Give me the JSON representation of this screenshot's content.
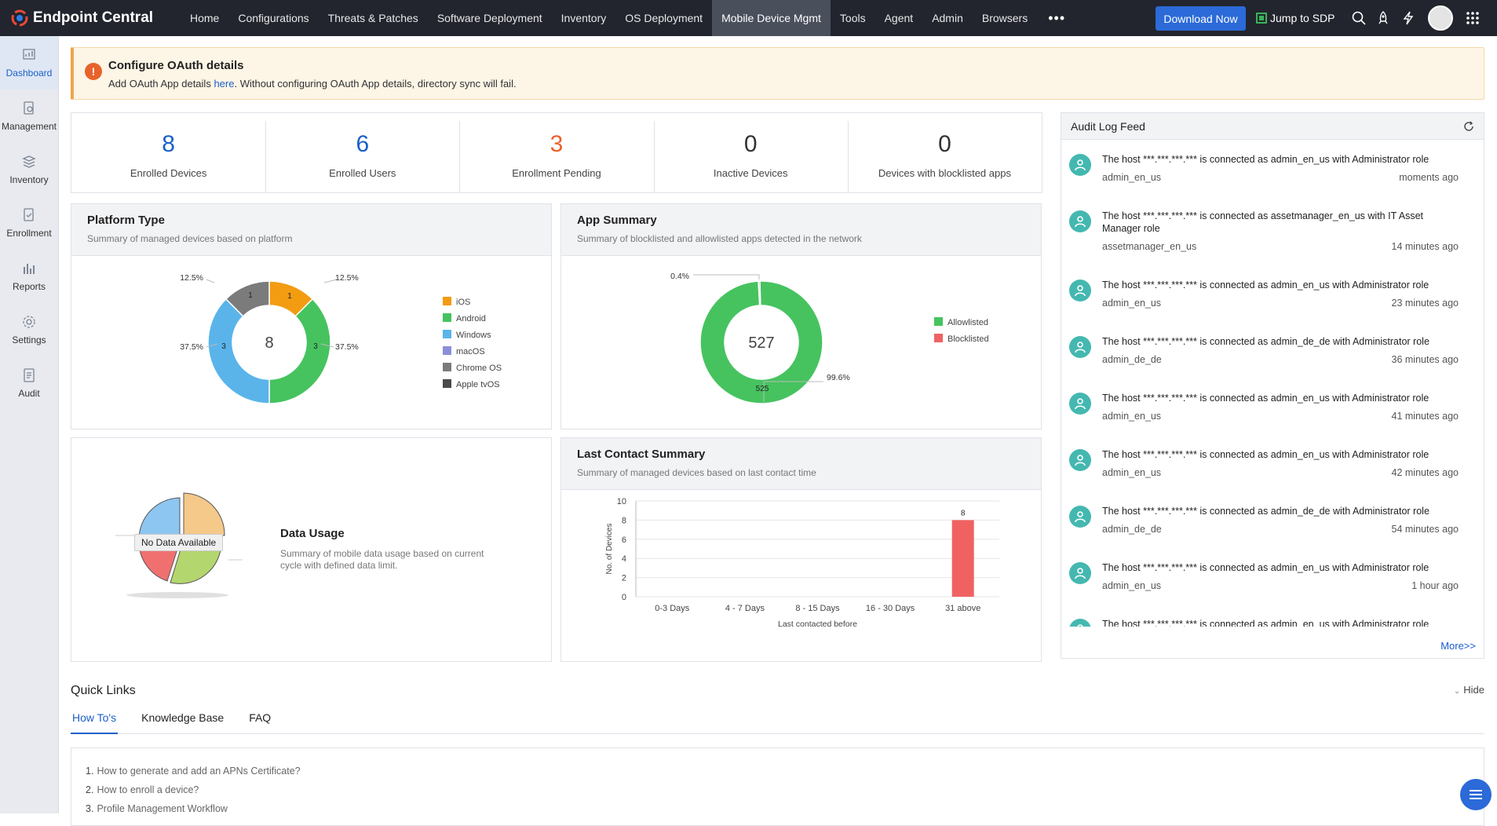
{
  "topbar": {
    "app_name": "Endpoint Central",
    "nav": [
      "Home",
      "Configurations",
      "Threats & Patches",
      "Software Deployment",
      "Inventory",
      "OS Deployment",
      "Mobile Device Mgmt",
      "Tools",
      "Agent",
      "Admin",
      "Browsers"
    ],
    "active_nav": "Mobile Device Mgmt",
    "more_label": "•••",
    "download_label": "Download Now",
    "jump_label": "Jump to SDP"
  },
  "sidebar": {
    "items": [
      {
        "label": "Dashboard",
        "icon": "dashboard-icon"
      },
      {
        "label": "Management",
        "icon": "management-icon"
      },
      {
        "label": "Inventory",
        "icon": "inventory-icon"
      },
      {
        "label": "Enrollment",
        "icon": "enrollment-icon"
      },
      {
        "label": "Reports",
        "icon": "reports-icon"
      },
      {
        "label": "Settings",
        "icon": "settings-icon"
      },
      {
        "label": "Audit",
        "icon": "audit-icon"
      }
    ],
    "active": "Dashboard"
  },
  "banner": {
    "title": "Configure OAuth details",
    "text_before": "Add OAuth App details ",
    "link": "here",
    "text_after": ". Without configuring OAuth App details, directory sync will fail."
  },
  "stats": [
    {
      "value": "8",
      "label": "Enrolled Devices",
      "color": "#1a5fc9"
    },
    {
      "value": "6",
      "label": "Enrolled Users",
      "color": "#1a5fc9"
    },
    {
      "value": "3",
      "label": "Enrollment Pending",
      "color": "#e8632c"
    },
    {
      "value": "0",
      "label": "Inactive Devices",
      "color": "#333333"
    },
    {
      "value": "0",
      "label": "Devices with blocklisted apps",
      "color": "#333333"
    }
  ],
  "platform": {
    "title": "Platform Type",
    "subtitle": "Summary of managed devices based on platform",
    "center": "8"
  },
  "appsum": {
    "title": "App Summary",
    "subtitle": "Summary of blocklisted and allowlisted apps detected in the network",
    "center": "527"
  },
  "datausage": {
    "title": "Data Usage",
    "subtitle": "Summary of mobile data usage based on current cycle with defined data limit.",
    "empty_label": "No Data Available"
  },
  "lastcontact": {
    "title": "Last Contact Summary",
    "subtitle": "Summary of managed devices based on last contact time"
  },
  "chart_data": [
    {
      "type": "pie",
      "chart": "platform",
      "categories": [
        "iOS",
        "Android",
        "Windows",
        "macOS",
        "Chrome OS",
        "Apple tvOS"
      ],
      "values": [
        1,
        3,
        3,
        0,
        1,
        0
      ],
      "percent_labels": [
        "12.5%",
        "37.5%",
        "37.5%",
        "",
        "12.5%",
        ""
      ],
      "colors": [
        "#f39c12",
        "#46c35f",
        "#5ab4ea",
        "#8b8fd8",
        "#7b7b7b",
        "#4a4a4a"
      ],
      "legend": "right"
    },
    {
      "type": "pie",
      "chart": "appsum",
      "categories": [
        "Allowlisted",
        "Blocklisted"
      ],
      "values": [
        525,
        2
      ],
      "percent_labels": [
        "99.6%",
        "0.4%"
      ],
      "colors": [
        "#46c35f",
        "#f06262"
      ],
      "legend": "right"
    },
    {
      "type": "bar",
      "chart": "lastcontact",
      "categories": [
        "0-3 Days",
        "4 - 7 Days",
        "8 - 15 Days",
        "16 - 30 Days",
        "31 above"
      ],
      "values": [
        0,
        0,
        0,
        0,
        8
      ],
      "data_labels": [
        "",
        "",
        "",
        "",
        "8"
      ],
      "xlabel": "Last contacted before",
      "ylabel": "No. of Devices",
      "ylim": [
        0,
        10
      ],
      "yticks": [
        "0",
        "2",
        "4",
        "6",
        "8",
        "10"
      ],
      "bar_color": "#f06262",
      "grid": true
    }
  ],
  "audit": {
    "title": "Audit Log Feed",
    "more": "More>>",
    "entries": [
      {
        "text": "The host ***.***.***.*** is connected as admin_en_us with Administrator role",
        "user": "admin_en_us",
        "time": "moments ago"
      },
      {
        "text": "The host ***.***.***.*** is connected as assetmanager_en_us with IT Asset Manager role",
        "user": "assetmanager_en_us",
        "time": "14 minutes ago"
      },
      {
        "text": "The host ***.***.***.*** is connected as admin_en_us with Administrator role",
        "user": "admin_en_us",
        "time": "23 minutes ago"
      },
      {
        "text": "The host ***.***.***.*** is connected as admin_de_de with Administrator role",
        "user": "admin_de_de",
        "time": "36 minutes ago"
      },
      {
        "text": "The host ***.***.***.*** is connected as admin_en_us with Administrator role",
        "user": "admin_en_us",
        "time": "41 minutes ago"
      },
      {
        "text": "The host ***.***.***.*** is connected as admin_en_us with Administrator role",
        "user": "admin_en_us",
        "time": "42 minutes ago"
      },
      {
        "text": "The host ***.***.***.*** is connected as admin_de_de with Administrator role",
        "user": "admin_de_de",
        "time": "54 minutes ago"
      },
      {
        "text": "The host ***.***.***.*** is connected as admin_en_us with Administrator role",
        "user": "admin_en_us",
        "time": "1 hour ago"
      },
      {
        "text": "The host ***.***.***.*** is connected as admin_en_us with Administrator role",
        "user": "",
        "time": ""
      }
    ]
  },
  "quicklinks": {
    "title": "Quick Links",
    "hide": "Hide",
    "tabs": [
      "How To's",
      "Knowledge Base",
      "FAQ"
    ],
    "active_tab": "How To's",
    "links": [
      {
        "num": "1.",
        "text": "How to generate and add an APNs Certificate?"
      },
      {
        "num": "2.",
        "text": "How to enroll a device?"
      },
      {
        "num": "3.",
        "text": "Profile Management Workflow"
      }
    ]
  }
}
